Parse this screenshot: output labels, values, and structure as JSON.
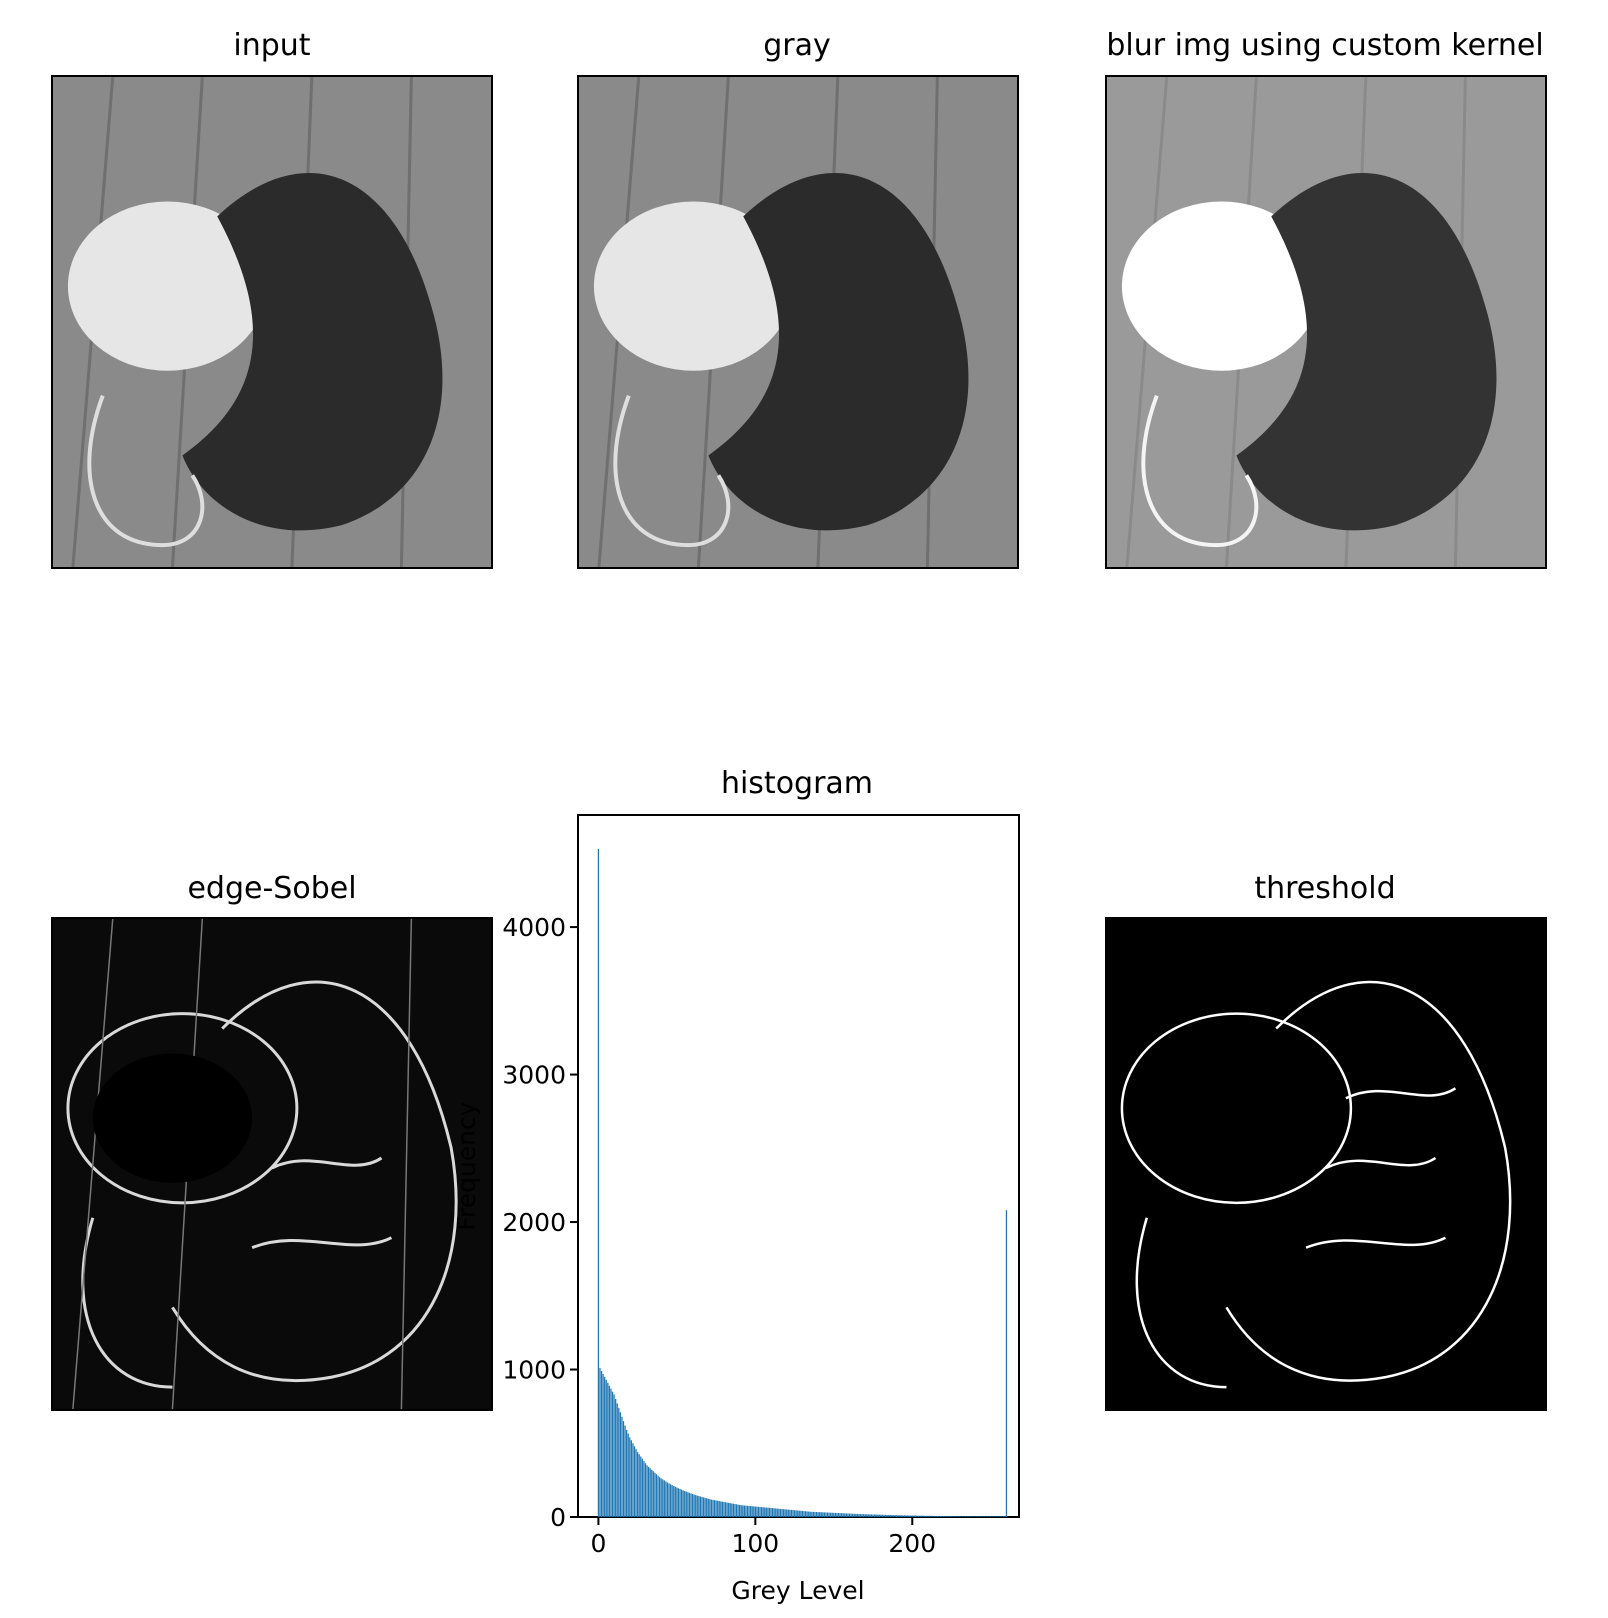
{
  "panels": {
    "input": {
      "title": "input"
    },
    "gray": {
      "title": "gray"
    },
    "blur": {
      "title": "blur img using custom kernel"
    },
    "sobel": {
      "title": "edge-Sobel"
    },
    "threshold": {
      "title": "threshold"
    }
  },
  "chart_data": {
    "type": "bar",
    "title": "histogram",
    "xlabel": "Grey Level",
    "ylabel": "Frequency",
    "xlim": [
      -13,
      268
    ],
    "ylim": [
      0,
      4760
    ],
    "xticks": [
      0,
      100,
      200
    ],
    "yticks": [
      0,
      1000,
      2000,
      3000,
      4000
    ],
    "bar_color": "#1f77b4",
    "values": [
      4530,
      1010,
      990,
      970,
      950,
      930,
      910,
      890,
      870,
      850,
      830,
      800,
      770,
      740,
      710,
      680,
      650,
      620,
      590,
      565,
      540,
      520,
      500,
      480,
      460,
      440,
      425,
      410,
      395,
      380,
      365,
      350,
      340,
      330,
      320,
      310,
      300,
      290,
      280,
      270,
      262,
      255,
      248,
      241,
      234,
      228,
      222,
      216,
      210,
      205,
      200,
      195,
      190,
      185,
      180,
      176,
      172,
      168,
      164,
      160,
      156,
      152,
      148,
      145,
      142,
      139,
      136,
      133,
      130,
      127,
      124,
      121,
      118,
      116,
      114,
      112,
      110,
      108,
      106,
      104,
      102,
      100,
      98,
      96,
      94,
      92,
      90,
      88,
      86,
      84,
      82,
      80,
      79,
      78,
      77,
      76,
      75,
      74,
      73,
      72,
      71,
      70,
      69,
      68,
      67,
      66,
      65,
      64,
      63,
      62,
      61,
      60,
      59,
      58,
      57,
      56,
      55,
      54,
      53,
      52,
      51,
      50,
      49,
      48,
      47,
      46,
      45,
      44,
      43,
      42,
      41,
      40,
      39,
      38,
      37,
      36,
      35,
      35,
      34,
      34,
      33,
      33,
      32,
      32,
      31,
      31,
      30,
      30,
      29,
      29,
      28,
      28,
      27,
      27,
      26,
      26,
      25,
      25,
      24,
      24,
      23,
      23,
      22,
      22,
      21,
      21,
      20,
      20,
      20,
      19,
      19,
      19,
      18,
      18,
      18,
      17,
      17,
      17,
      16,
      16,
      16,
      15,
      15,
      15,
      14,
      14,
      14,
      13,
      13,
      13,
      12,
      12,
      12,
      12,
      11,
      11,
      11,
      11,
      10,
      10,
      10,
      10,
      10,
      9,
      9,
      9,
      9,
      9,
      8,
      8,
      8,
      8,
      8,
      8,
      7,
      7,
      7,
      7,
      7,
      7,
      7,
      6,
      6,
      6,
      6,
      6,
      6,
      6,
      6,
      5,
      5,
      5,
      5,
      5,
      5,
      5,
      5,
      5,
      5,
      5,
      5,
      5,
      5,
      5,
      5,
      5,
      5,
      5,
      5,
      5,
      5,
      5,
      5,
      5,
      5,
      5,
      5,
      5,
      5,
      5,
      2080
    ]
  }
}
